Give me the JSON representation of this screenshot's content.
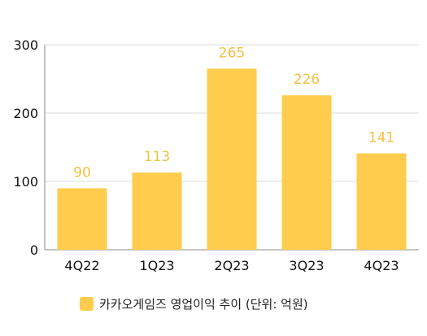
{
  "chart_data": {
    "type": "bar",
    "categories": [
      "4Q22",
      "1Q23",
      "2Q23",
      "3Q23",
      "4Q23"
    ],
    "series": [
      {
        "name": "카카오게임즈 영업이익 추이  (단위: 억원)",
        "values": [
          90,
          113,
          265,
          226,
          141
        ]
      }
    ],
    "data_labels": [
      "90",
      "113",
      "265",
      "226",
      "141"
    ],
    "yticks": [
      0,
      100,
      200,
      300
    ],
    "ylim": [
      0,
      300
    ],
    "grid": true,
    "legend_position": "bottom",
    "colors": {
      "bar": "#FFCC4D",
      "data_label": "#F2C142",
      "grid": "#DDDDDD",
      "axis": "#888888",
      "tick_text": "#111111"
    }
  }
}
